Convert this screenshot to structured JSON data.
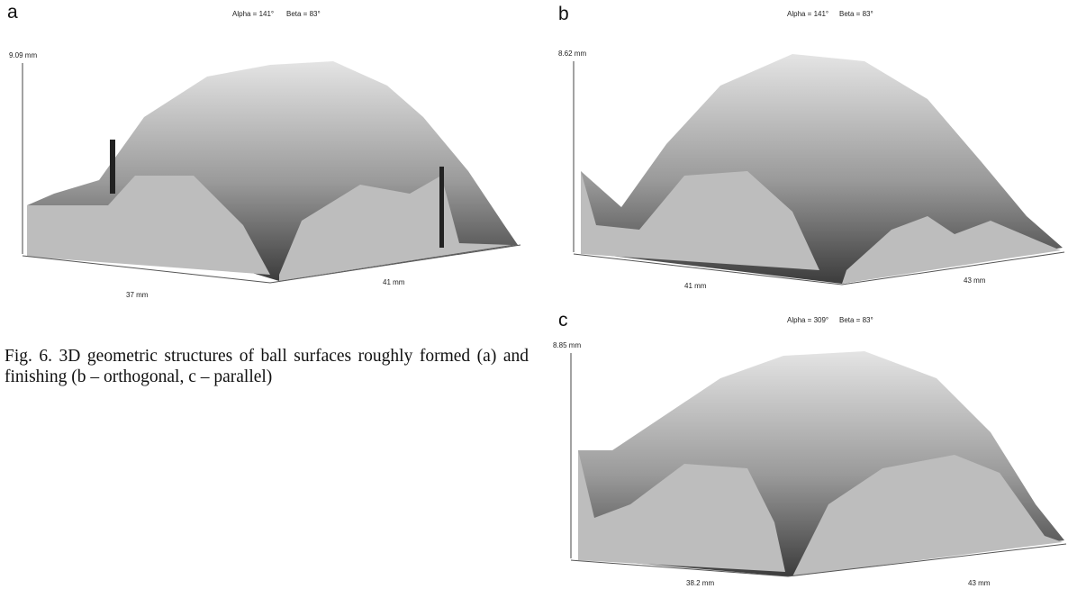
{
  "panels": [
    {
      "letter": "a",
      "alpha": "Alpha = 141°",
      "beta": "Beta = 83°",
      "height": "9.09 mm",
      "x_axis": "37 mm",
      "y_axis": "41 mm"
    },
    {
      "letter": "b",
      "alpha": "Alpha = 141°",
      "beta": "Beta = 83°",
      "height": "8.62 mm",
      "x_axis": "41 mm",
      "y_axis": "43 mm"
    },
    {
      "letter": "c",
      "alpha": "Alpha = 309°",
      "beta": "Beta = 83°",
      "height": "8.85 mm",
      "x_axis": "38.2 mm",
      "y_axis": "43 mm"
    }
  ],
  "caption": "Fig. 6. 3D geometric structures of ball surfaces roughly formed (a) and finishing (b – orthogonal, c – parallel)"
}
